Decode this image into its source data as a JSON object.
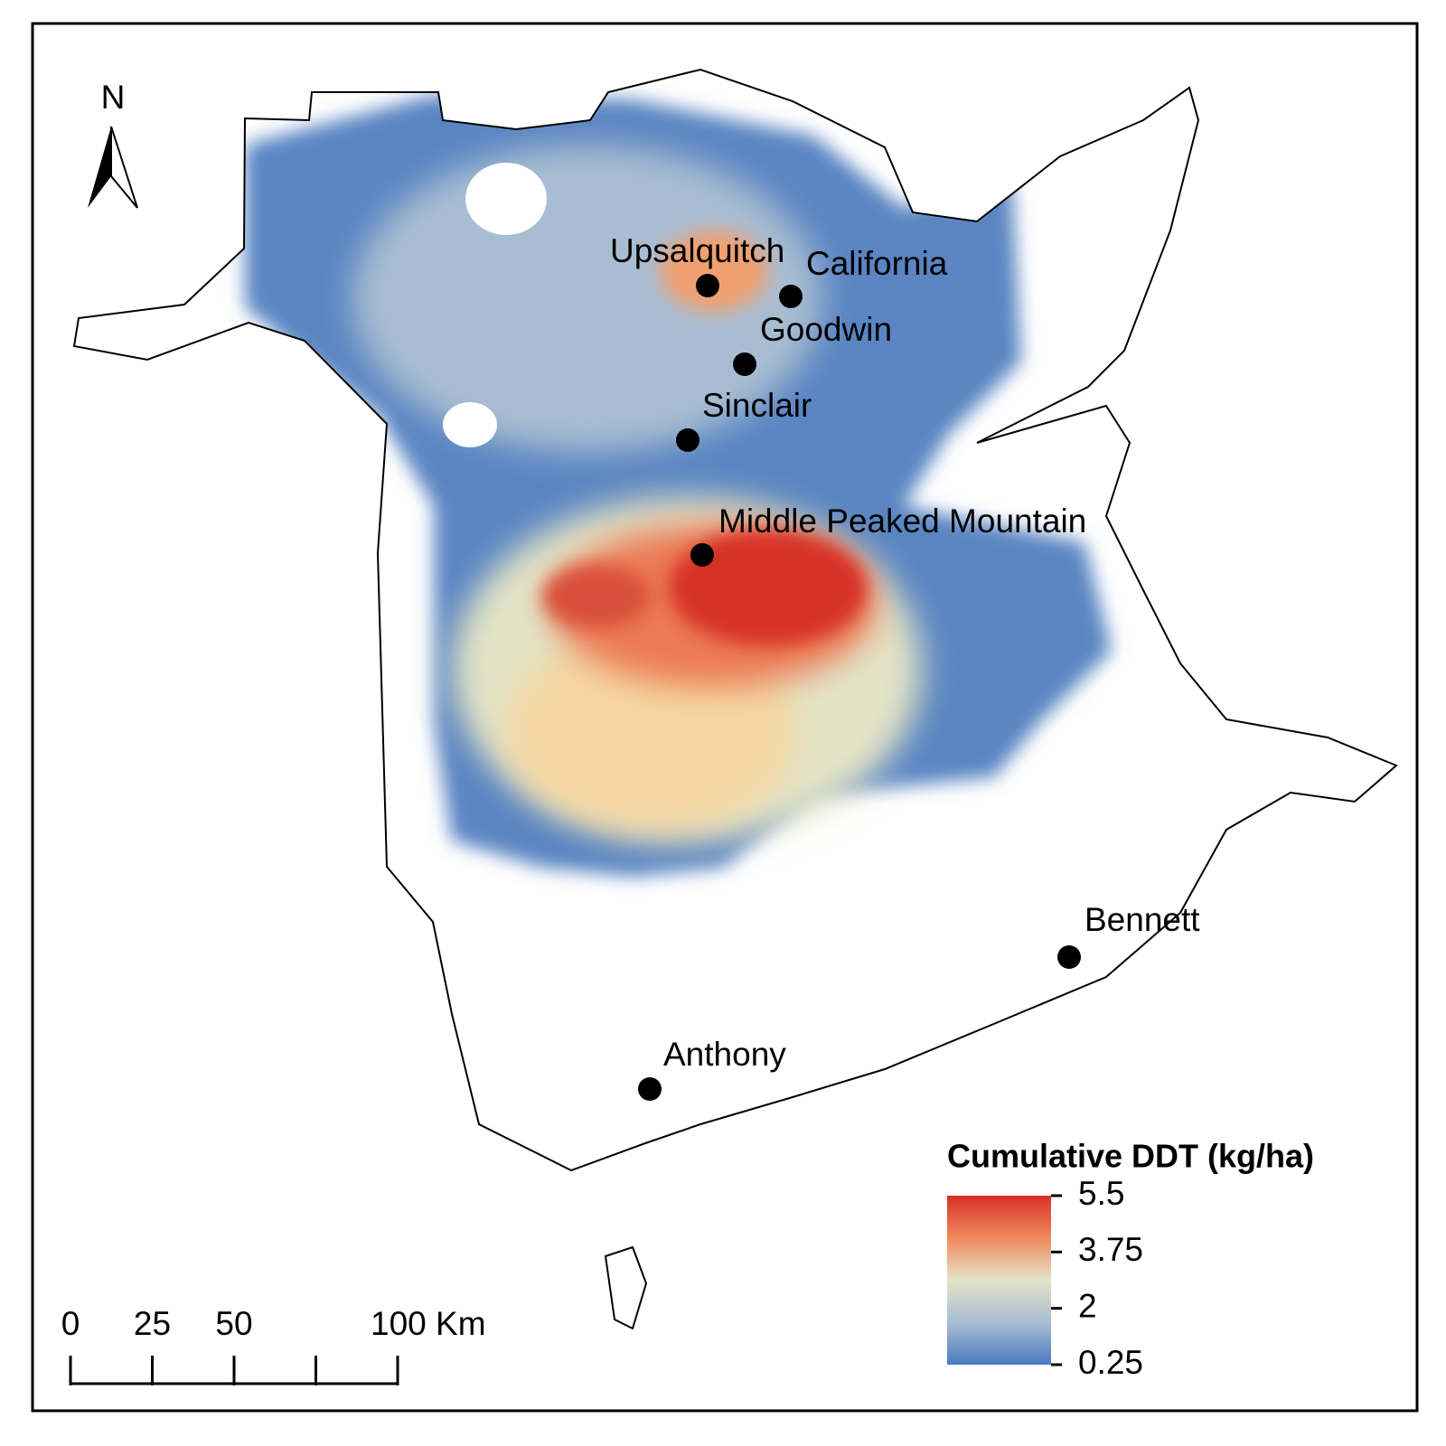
{
  "map": {
    "north_arrow": "N",
    "sites": [
      "Upsalquitch",
      "California",
      "Goodwin",
      "Sinclair",
      "Middle Peaked Mountain",
      "Bennett",
      "Anthony"
    ],
    "legend": {
      "title": "Cumulative DDT (kg/ha)",
      "ticks": [
        5.5,
        3.75,
        2,
        0.25
      ],
      "colors": [
        "#d73027",
        "#f08a5e",
        "#e3e4c6",
        "#a9bdd2",
        "#4a7bc1"
      ]
    },
    "scale_bar": {
      "ticks": [
        0,
        25,
        50,
        {
          "value": 100,
          "label": "100 Km"
        }
      ]
    }
  }
}
